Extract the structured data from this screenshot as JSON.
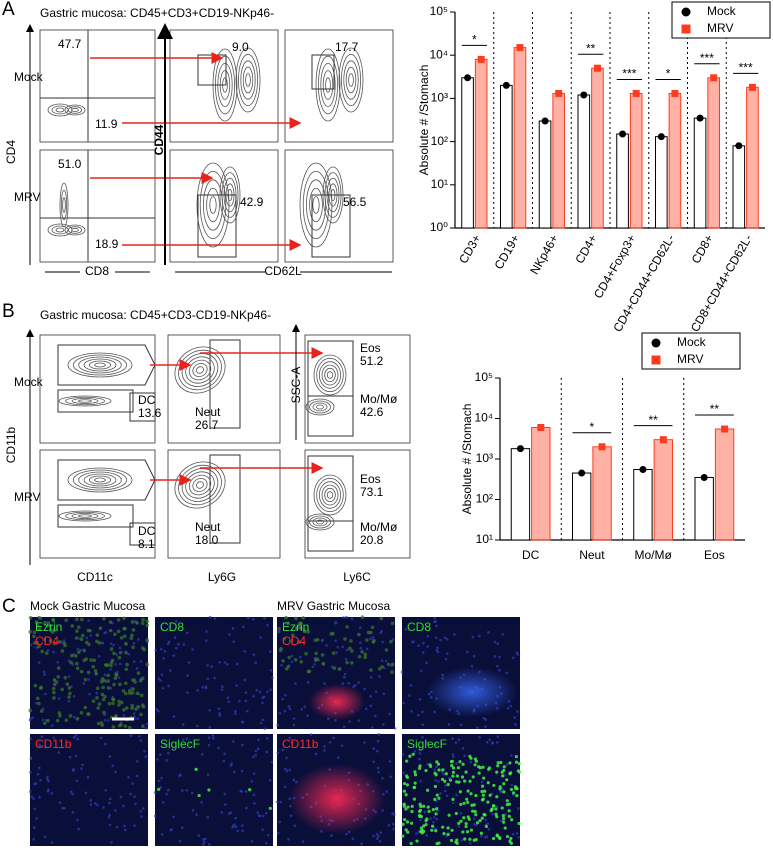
{
  "panels": {
    "a": "A",
    "b": "B",
    "c": "C"
  },
  "flow_a": {
    "title": "Gastric mucosa: CD45+CD3+CD19-NKp46-",
    "rows": [
      "Mock",
      "MRV"
    ],
    "axes": [
      "CD4",
      "CD8",
      "CD44",
      "CD62L"
    ],
    "gates": [
      [
        "47.7",
        "11.9",
        "9.0",
        "17.7"
      ],
      [
        "51.0",
        "18.9",
        "42.9",
        "56.5"
      ]
    ]
  },
  "flow_b": {
    "title": "Gastric mucosa: CD45+CD3-CD19-NKp46-",
    "rows": [
      "Mock",
      "MRV"
    ],
    "axes": [
      "CD11b",
      "CD11c",
      "Ly6G",
      "SSC-A",
      "Ly6C"
    ],
    "gates": [
      [
        {
          "name": "DC",
          "value": "13.6"
        },
        {
          "name": "Neut",
          "value": "26.7"
        },
        {
          "name": "Eos",
          "value": "51.2"
        },
        {
          "name": "Mo/Mø",
          "value": "42.6"
        }
      ],
      [
        {
          "name": "DC",
          "value": "8.1"
        },
        {
          "name": "Neut",
          "value": "18.0"
        },
        {
          "name": "Eos",
          "value": "73.1"
        },
        {
          "name": "Mo/Mø",
          "value": "20.8"
        }
      ]
    ]
  },
  "chart_data": [
    {
      "type": "bar",
      "y_label": "Absolute # /Stomach",
      "log_scale": true,
      "legend": "upper right",
      "categories": [
        "CD3+",
        "CD19+",
        "NKp46+",
        "CD4+",
        "CD4+Foxp3+",
        "CD4+CD44+CD62L-",
        "CD8+",
        "CD8+CD44+CD62L-"
      ],
      "series": [
        {
          "name": "Mock",
          "color": "#000000",
          "values": [
            3000,
            2000,
            300,
            1200,
            150,
            130,
            350,
            80
          ]
        },
        {
          "name": "MRV",
          "color": "#ff3b1f",
          "values": [
            8000,
            15000,
            1300,
            5000,
            1300,
            1300,
            3000,
            1800
          ]
        }
      ],
      "significance": [
        "*",
        null,
        null,
        "**",
        "***",
        "*",
        "***",
        "***"
      ],
      "ylim": [
        1,
        100000
      ],
      "yticks": [
        {
          "value": 1,
          "label": "10⁰"
        },
        {
          "value": 10,
          "label": "10¹"
        },
        {
          "value": 100,
          "label": "10²"
        },
        {
          "value": 1000,
          "label": "10³"
        },
        {
          "value": 10000,
          "label": "10⁴"
        },
        {
          "value": 100000,
          "label": "10⁵"
        }
      ]
    },
    {
      "type": "bar",
      "y_label": "Absolute # /Stomach",
      "log_scale": true,
      "legend": "upper right",
      "categories": [
        "DC",
        "Neut",
        "Mo/Mø",
        "Eos"
      ],
      "series": [
        {
          "name": "Mock",
          "color": "#000000",
          "values": [
            1800,
            450,
            550,
            350
          ]
        },
        {
          "name": "MRV",
          "color": "#ff3b1f",
          "values": [
            6000,
            2000,
            3000,
            5500
          ]
        }
      ],
      "significance": [
        null,
        "*",
        "**",
        "**"
      ],
      "ylim": [
        10,
        100000
      ],
      "yticks": [
        {
          "value": 10,
          "label": "10¹"
        },
        {
          "value": 100,
          "label": "10²"
        },
        {
          "value": 1000,
          "label": "10³"
        },
        {
          "value": 10000,
          "label": "10⁴"
        },
        {
          "value": 100000,
          "label": "10⁵"
        }
      ]
    }
  ],
  "panel_c": {
    "titles": [
      "Mock Gastric Mucosa",
      "MRV Gastric Mucosa"
    ],
    "images": [
      [
        [
          "Ezrin",
          "CD4"
        ],
        [
          "CD8"
        ],
        [
          "CD11b"
        ],
        [
          "SiglecF"
        ]
      ],
      [
        [
          "Ezrin",
          "CD4"
        ],
        [
          "CD8"
        ],
        [
          "CD11b"
        ],
        [
          "SiglecF"
        ]
      ]
    ]
  }
}
